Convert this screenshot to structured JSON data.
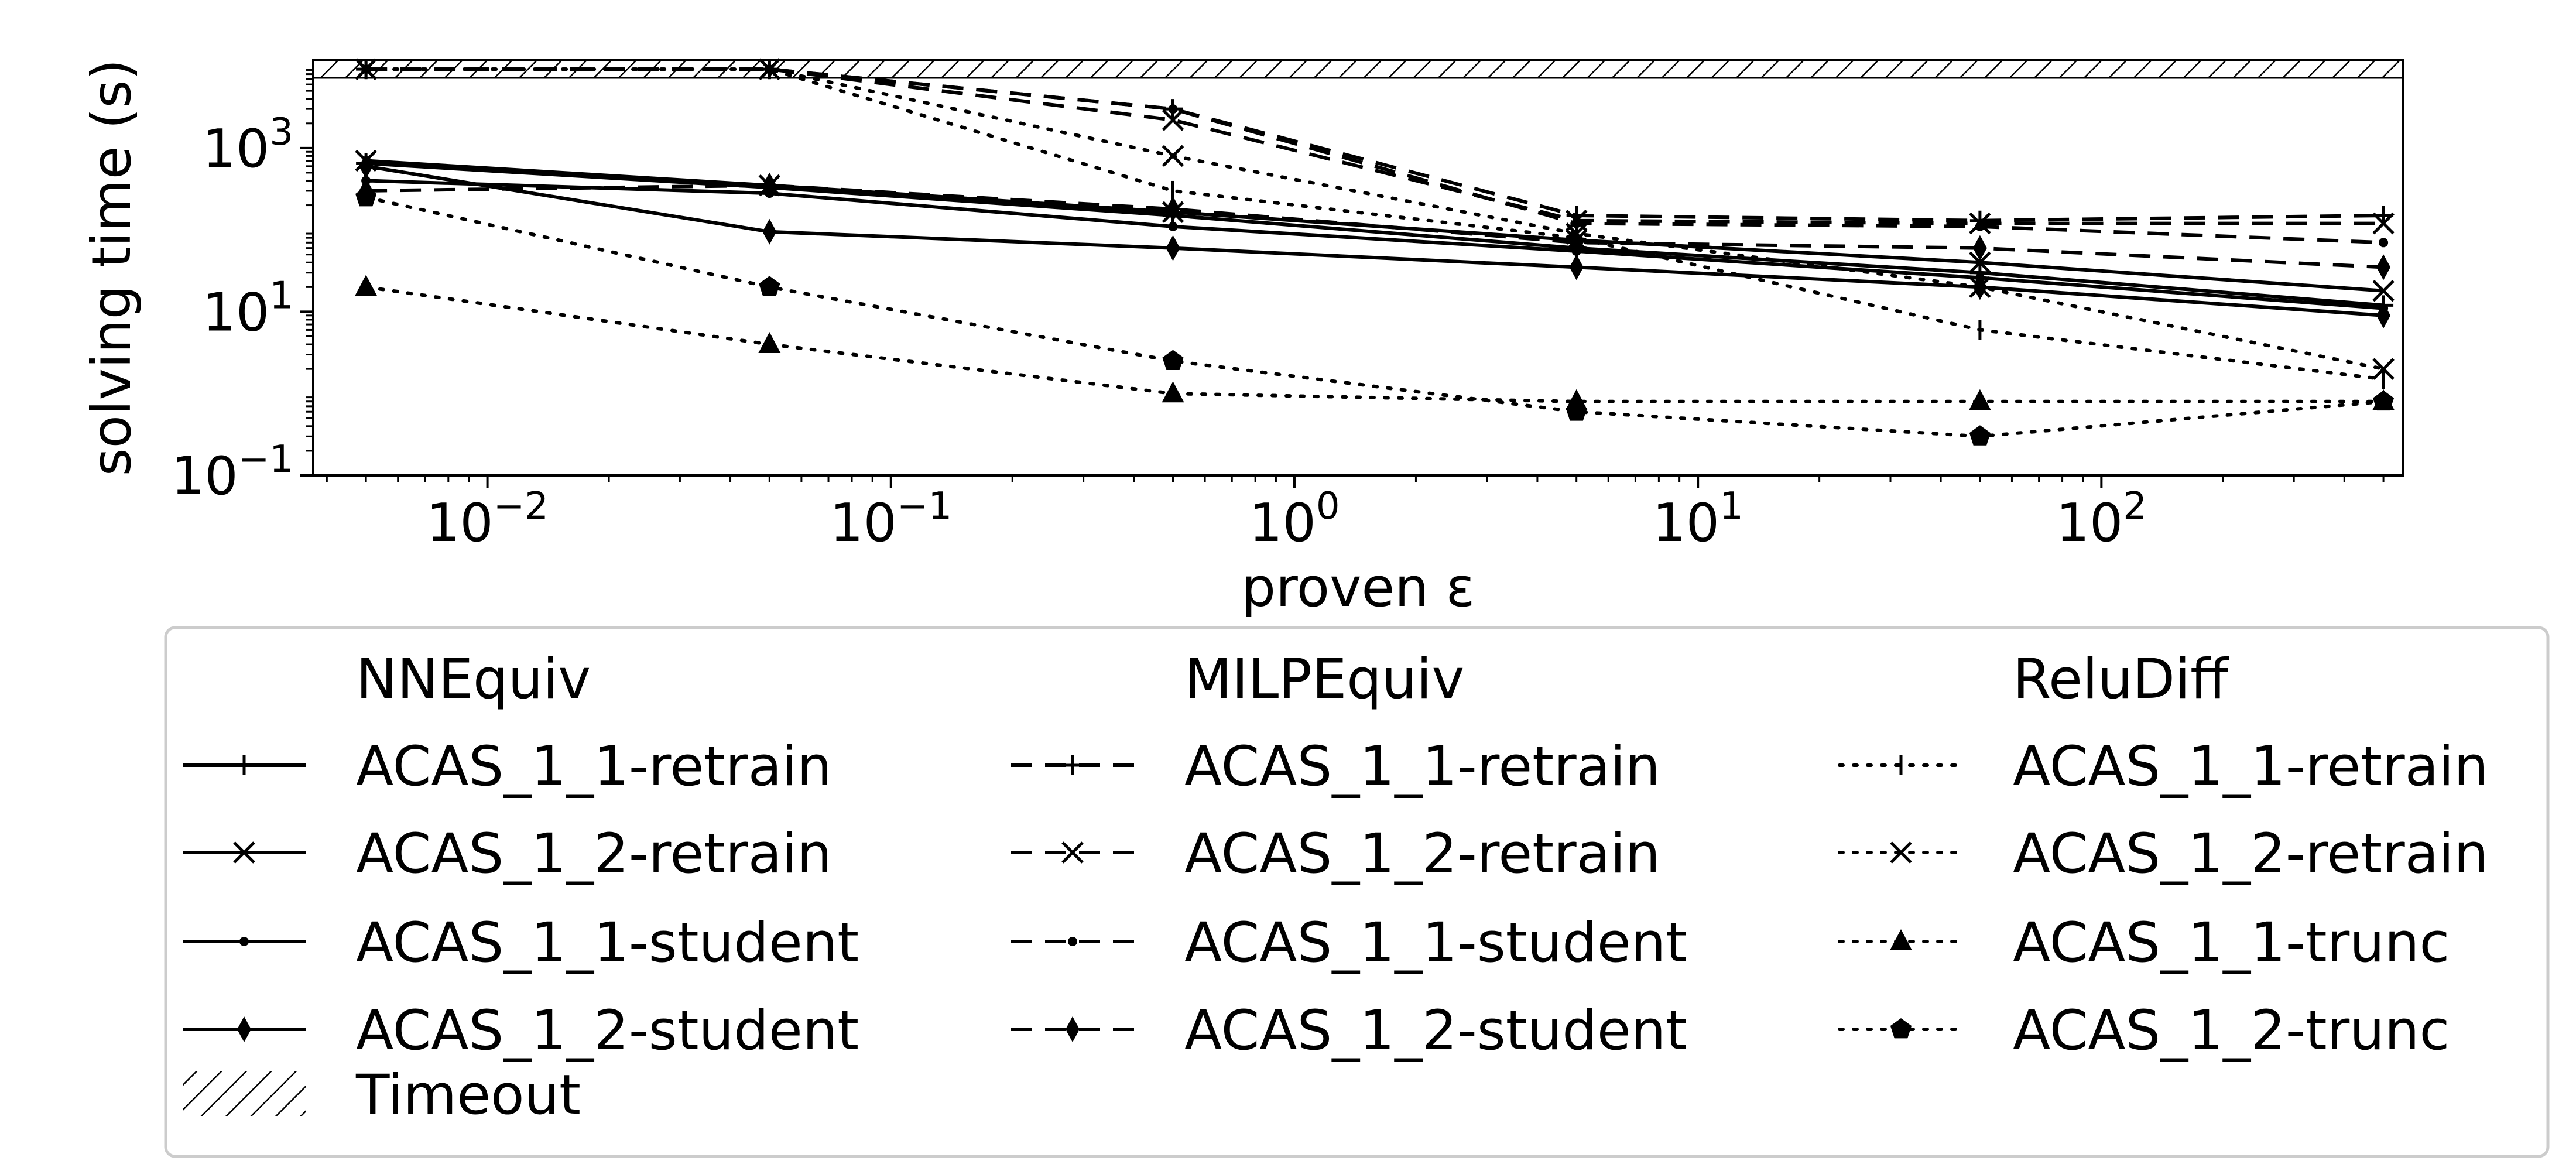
{
  "chart_data": {
    "type": "line",
    "xlabel": "proven ε",
    "ylabel": "solving time (s)",
    "xscale": "log",
    "yscale": "log",
    "xlim": [
      0.0037,
      560
    ],
    "ylim": [
      0.1,
      12000
    ],
    "x_ticks": [
      {
        "value": 0.01,
        "base": "10",
        "exp": "−2"
      },
      {
        "value": 0.1,
        "base": "10",
        "exp": "−1"
      },
      {
        "value": 1,
        "base": "10",
        "exp": "0"
      },
      {
        "value": 10,
        "base": "10",
        "exp": "1"
      },
      {
        "value": 100,
        "base": "10",
        "exp": "2"
      }
    ],
    "y_ticks": [
      {
        "value": 0.1,
        "base": "10",
        "exp": "−1"
      },
      {
        "value": 10,
        "base": "10",
        "exp": "1"
      },
      {
        "value": 1000,
        "base": "10",
        "exp": "3"
      }
    ],
    "x": [
      0.005,
      0.05,
      0.5,
      5,
      50,
      500
    ],
    "timeout": {
      "label": "Timeout",
      "from": 7200,
      "to": 12000
    },
    "groups": [
      {
        "title": "NNEquiv",
        "dash": "solid",
        "series": [
          {
            "name": "ACAS_1_1-retrain",
            "marker": "plus",
            "values": [
              650,
              330,
              150,
              60,
              30,
              12
            ]
          },
          {
            "name": "ACAS_1_2-retrain",
            "marker": "x",
            "values": [
              700,
              350,
              165,
              75,
              40,
              18
            ]
          },
          {
            "name": "ACAS_1_1-student",
            "marker": "dot",
            "values": [
              400,
              280,
              110,
              55,
              26,
              11
            ]
          },
          {
            "name": "ACAS_1_2-student",
            "marker": "diamond",
            "values": [
              600,
              95,
              60,
              35,
              20,
              9
            ]
          }
        ]
      },
      {
        "title": "MILPEquiv",
        "dash": "dashed",
        "series": [
          {
            "name": "ACAS_1_1-retrain",
            "marker": "plus",
            "values": [
              9200,
              9200,
              3000,
              150,
              130,
              150
            ]
          },
          {
            "name": "ACAS_1_2-retrain",
            "marker": "x",
            "values": [
              9200,
              9200,
              2200,
              130,
              120,
              120
            ]
          },
          {
            "name": "ACAS_1_1-student",
            "marker": "dot",
            "values": [
              9200,
              9200,
              3000,
              120,
              110,
              70
            ]
          },
          {
            "name": "ACAS_1_2-student",
            "marker": "diamond",
            "values": [
              300,
              350,
              180,
              70,
              60,
              35
            ]
          }
        ]
      },
      {
        "title": "ReluDiff",
        "dash": "dotted",
        "series": [
          {
            "name": "ACAS_1_1-retrain",
            "marker": "vline",
            "values": [
              9200,
              9200,
              300,
              80,
              6,
              1.5
            ]
          },
          {
            "name": "ACAS_1_2-retrain",
            "marker": "x",
            "values": [
              9200,
              9200,
              800,
              90,
              20,
              2
            ]
          },
          {
            "name": "ACAS_1_1-trunc",
            "marker": "triangle",
            "values": [
              20,
              4,
              1,
              0.8,
              0.8,
              0.8
            ]
          },
          {
            "name": "ACAS_1_2-trunc",
            "marker": "pentagon",
            "values": [
              250,
              20,
              2.5,
              0.6,
              0.3,
              0.8
            ]
          }
        ]
      }
    ]
  }
}
